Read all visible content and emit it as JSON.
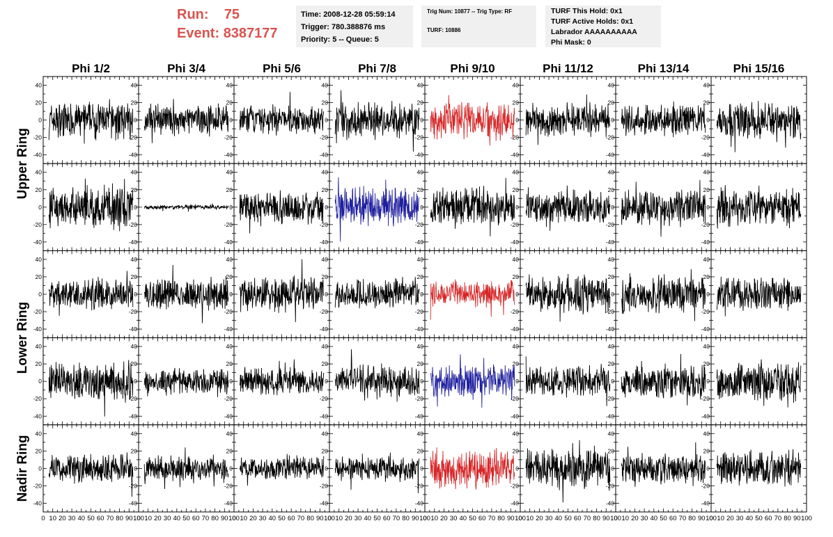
{
  "header": {
    "run_label": "Run:",
    "run_value": "75",
    "event_label": "Event:",
    "event_value": "8387177",
    "time": "Time: 2008-12-28 05:59:14",
    "trigger": "Trigger: 780.388876 ms",
    "priority": "Priority: 5 -- Queue: 5",
    "trig_num": "Trig Num: 10877 -- Trig Type: RF",
    "turf": "TURF: 10886",
    "turf_this_hold": "TURF This Hold: 0x1",
    "turf_active_holds": "TURF Active Holds: 0x1",
    "labrador": "Labrador AAAAAAAAAA",
    "phi_mask": "Phi Mask: 0"
  },
  "colors": {
    "trace": "#000000",
    "upper_highlight": "#d62728",
    "lower_highlight": "#1f1f9e"
  },
  "chart_data": {
    "type": "line",
    "columns": [
      "Phi 1/2",
      "Phi 3/4",
      "Phi 5/6",
      "Phi 7/8",
      "Phi 9/10",
      "Phi 11/12",
      "Phi 13/14",
      "Phi 15/16"
    ],
    "rings": [
      "Upper Ring",
      "Lower Ring",
      "Nadir Ring"
    ],
    "rows": 5,
    "row_ring_groups": [
      {
        "ring": "Upper Ring",
        "rows": [
          0,
          1
        ]
      },
      {
        "ring": "Lower Ring",
        "rows": [
          2,
          3
        ]
      },
      {
        "ring": "Nadir Ring",
        "rows": [
          4
        ]
      }
    ],
    "xlim": [
      0,
      100
    ],
    "ylim": [
      -50,
      50
    ],
    "y_ticks": [
      -40,
      -20,
      0,
      20,
      40
    ],
    "x_ticks": [
      0,
      10,
      20,
      30,
      40,
      50,
      60,
      70,
      80,
      90,
      100
    ],
    "highlighted": [
      {
        "row": 0,
        "col": 4,
        "color": "upper_highlight"
      },
      {
        "row": 1,
        "col": 3,
        "color": "lower_highlight"
      },
      {
        "row": 2,
        "col": 4,
        "color": "upper_highlight"
      },
      {
        "row": 3,
        "col": 4,
        "color": "lower_highlight"
      },
      {
        "row": 4,
        "col": 4,
        "color": "upper_highlight"
      }
    ],
    "amplitudes": [
      [
        16,
        13,
        13,
        16,
        17,
        14,
        14,
        17
      ],
      [
        19,
        2,
        14,
        17,
        17,
        15,
        16,
        17
      ],
      [
        14,
        14,
        15,
        12,
        12,
        16,
        17,
        15
      ],
      [
        17,
        12,
        12,
        14,
        15,
        14,
        15,
        18
      ],
      [
        13,
        11,
        10,
        11,
        17,
        16,
        13,
        15
      ]
    ]
  }
}
